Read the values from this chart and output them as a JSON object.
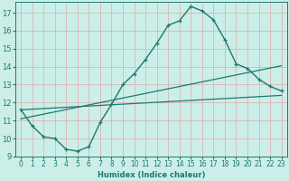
{
  "title": "",
  "xlabel": "Humidex (Indice chaleur)",
  "bg_color": "#cceee8",
  "grid_color": "#aaddcc",
  "line_color": "#1a7a6e",
  "xlim": [
    -0.5,
    23.5
  ],
  "ylim": [
    9,
    17.6
  ],
  "xticks": [
    0,
    1,
    2,
    3,
    4,
    5,
    6,
    7,
    8,
    9,
    10,
    11,
    12,
    13,
    14,
    15,
    16,
    17,
    18,
    19,
    20,
    21,
    22,
    23
  ],
  "yticks": [
    9,
    10,
    11,
    12,
    13,
    14,
    15,
    16,
    17
  ],
  "curve1_x": [
    0,
    1,
    2,
    3,
    4,
    5,
    6,
    7,
    8,
    9,
    10,
    11,
    12,
    13,
    14,
    15,
    16,
    17,
    18,
    19,
    20,
    21,
    22,
    23
  ],
  "curve1_y": [
    11.6,
    10.7,
    10.1,
    10.0,
    9.4,
    9.3,
    9.55,
    10.9,
    11.9,
    13.0,
    13.6,
    14.4,
    15.3,
    16.3,
    16.55,
    17.35,
    17.1,
    16.6,
    15.5,
    14.15,
    13.9,
    13.3,
    12.9,
    12.65
  ],
  "curve2_x": [
    0,
    23
  ],
  "curve2_y": [
    11.6,
    12.4
  ],
  "curve3_x": [
    0,
    23
  ],
  "curve3_y": [
    11.1,
    14.05
  ],
  "xlabel_fontsize": 6,
  "tick_fontsize": 5.5
}
